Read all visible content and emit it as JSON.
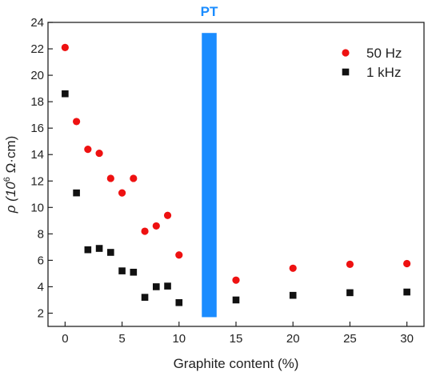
{
  "chart_data": {
    "type": "scatter",
    "title": "",
    "xlabel": "Graphite content (%)",
    "ylabel_main": "ρ (10",
    "ylabel_sup": "6",
    "ylabel_rest": " Ω·cm)",
    "xlim": [
      -1.5,
      31.5
    ],
    "ylim": [
      1,
      24
    ],
    "xticks": [
      0,
      5,
      10,
      15,
      20,
      25,
      30
    ],
    "yticks": [
      2,
      4,
      6,
      8,
      10,
      12,
      14,
      16,
      18,
      20,
      22,
      24
    ],
    "grid": false,
    "legend_position": "top-right",
    "series": [
      {
        "name": "50 Hz",
        "marker": "circle",
        "color": "#ee1111",
        "points": [
          [
            0,
            22.1
          ],
          [
            1,
            16.5
          ],
          [
            2,
            14.4
          ],
          [
            3,
            14.1
          ],
          [
            4,
            12.2
          ],
          [
            5,
            11.1
          ],
          [
            6,
            12.2
          ],
          [
            7,
            8.2
          ],
          [
            8,
            8.6
          ],
          [
            9,
            9.4
          ],
          [
            10,
            6.4
          ],
          [
            15,
            4.5
          ],
          [
            20,
            5.4
          ],
          [
            25,
            5.7
          ],
          [
            30,
            5.75
          ]
        ]
      },
      {
        "name": "1 kHz",
        "marker": "square",
        "color": "#111111",
        "points": [
          [
            0,
            18.6
          ],
          [
            1,
            11.1
          ],
          [
            2,
            6.8
          ],
          [
            3,
            6.9
          ],
          [
            4,
            6.6
          ],
          [
            5,
            5.2
          ],
          [
            6,
            5.1
          ],
          [
            7,
            3.2
          ],
          [
            8,
            4.0
          ],
          [
            9,
            4.05
          ],
          [
            10,
            2.8
          ],
          [
            15,
            3.0
          ],
          [
            20,
            3.35
          ],
          [
            25,
            3.55
          ],
          [
            30,
            3.6
          ]
        ]
      }
    ],
    "annotation": {
      "label": "PT",
      "color": "#1a8cff",
      "x_range": [
        12,
        13.3
      ],
      "y_range": [
        1.7,
        23.2
      ]
    }
  }
}
